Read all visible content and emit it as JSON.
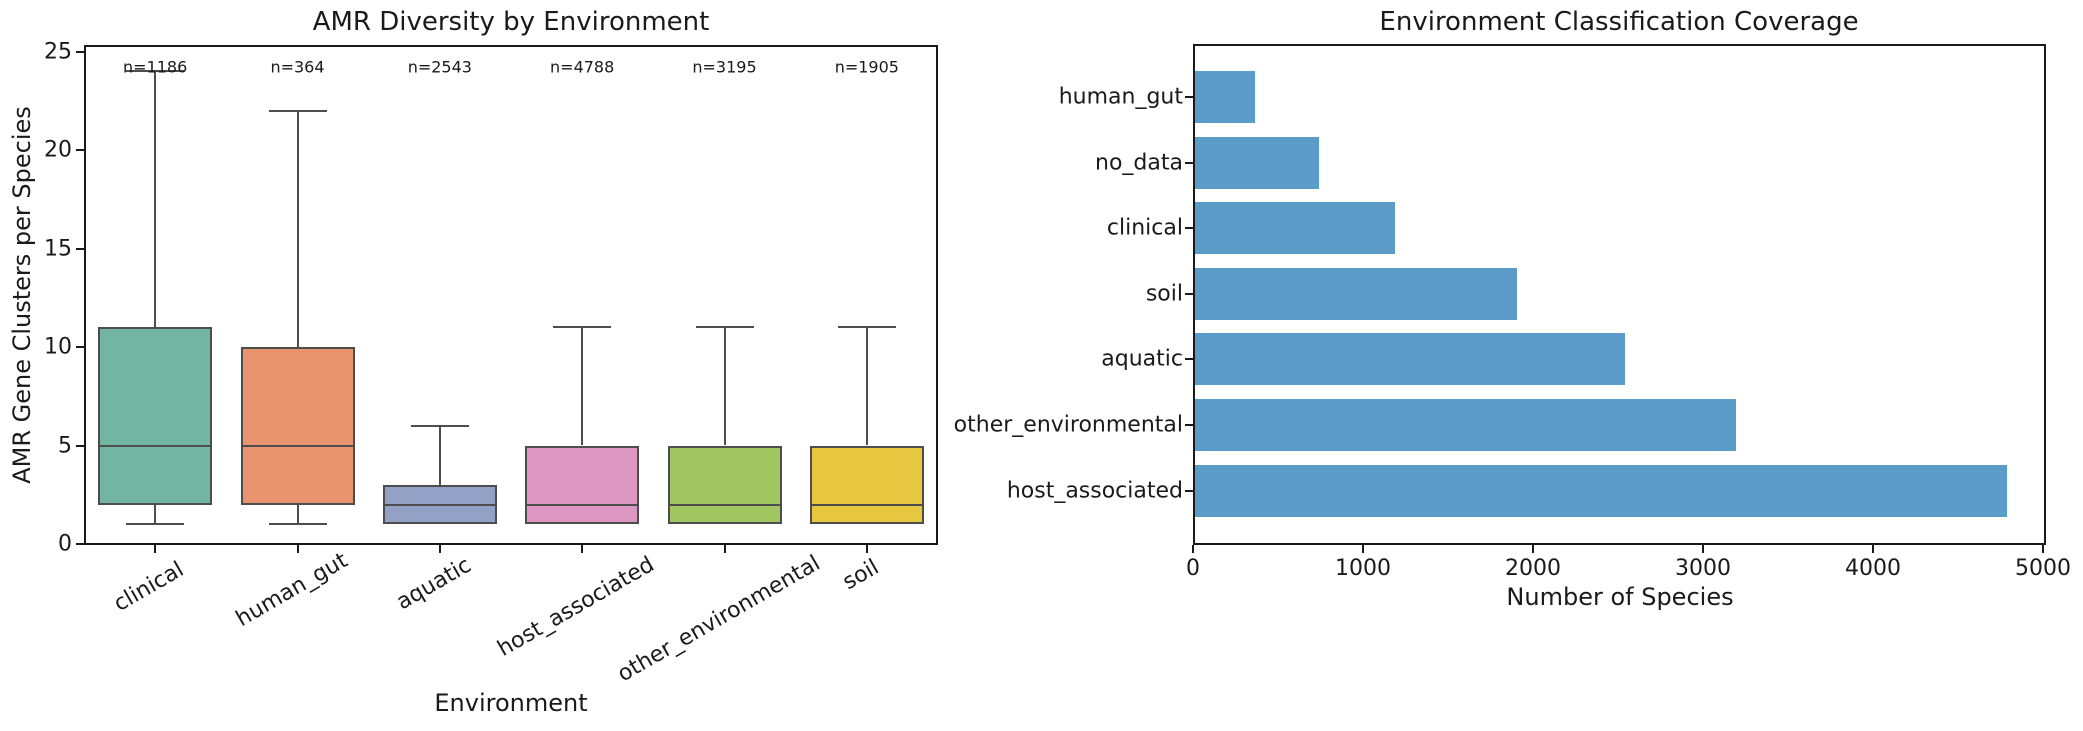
{
  "chart_data": [
    {
      "type": "box",
      "title": "AMR Diversity by Environment",
      "xlabel": "Environment",
      "ylabel": "AMR Gene Clusters per Species",
      "ylim": [
        0,
        25
      ],
      "yticks": [
        0,
        5,
        10,
        15,
        20,
        25
      ],
      "grid": false,
      "legend": null,
      "categories": [
        "clinical",
        "human_gut",
        "aquatic",
        "host_associated",
        "other_environmental",
        "soil"
      ],
      "annotations": [
        "n=1186",
        "n=364",
        "n=2543",
        "n=4788",
        "n=3195",
        "n=1905"
      ],
      "edge_color": "#4d4d4d",
      "series": [
        {
          "name": "clinical",
          "n": 1186,
          "whislo": 1,
          "q1": 2,
          "med": 5,
          "q3": 11,
          "whishi": 24,
          "color": "#72b5a0"
        },
        {
          "name": "human_gut",
          "n": 364,
          "whislo": 1,
          "q1": 2,
          "med": 5,
          "q3": 10,
          "whishi": 22,
          "color": "#e9946f"
        },
        {
          "name": "aquatic",
          "n": 2543,
          "whislo": 1,
          "q1": 1,
          "med": 2,
          "q3": 3,
          "whishi": 6,
          "color": "#93a1c6"
        },
        {
          "name": "host_associated",
          "n": 4788,
          "whislo": 1,
          "q1": 1,
          "med": 2,
          "q3": 5,
          "whishi": 11,
          "color": "#de97c3"
        },
        {
          "name": "other_environmental",
          "n": 3195,
          "whislo": 1,
          "q1": 1,
          "med": 2,
          "q3": 5,
          "whishi": 11,
          "color": "#a0c561"
        },
        {
          "name": "soil",
          "n": 1905,
          "whislo": 1,
          "q1": 1,
          "med": 2,
          "q3": 5,
          "whishi": 11,
          "color": "#e6c73f"
        }
      ]
    },
    {
      "type": "bar",
      "orientation": "horizontal",
      "title": "Environment Classification Coverage",
      "xlabel": "Number of Species",
      "xlim": [
        0,
        5000
      ],
      "xticks": [
        0,
        1000,
        2000,
        3000,
        4000,
        5000
      ],
      "grid": false,
      "legend": null,
      "bar_color": "#5c9cc9",
      "categories": [
        "human_gut",
        "no_data",
        "clinical",
        "soil",
        "aquatic",
        "other_environmental",
        "host_associated"
      ],
      "values": [
        364,
        743,
        1186,
        1905,
        2543,
        3195,
        4788
      ]
    }
  ]
}
